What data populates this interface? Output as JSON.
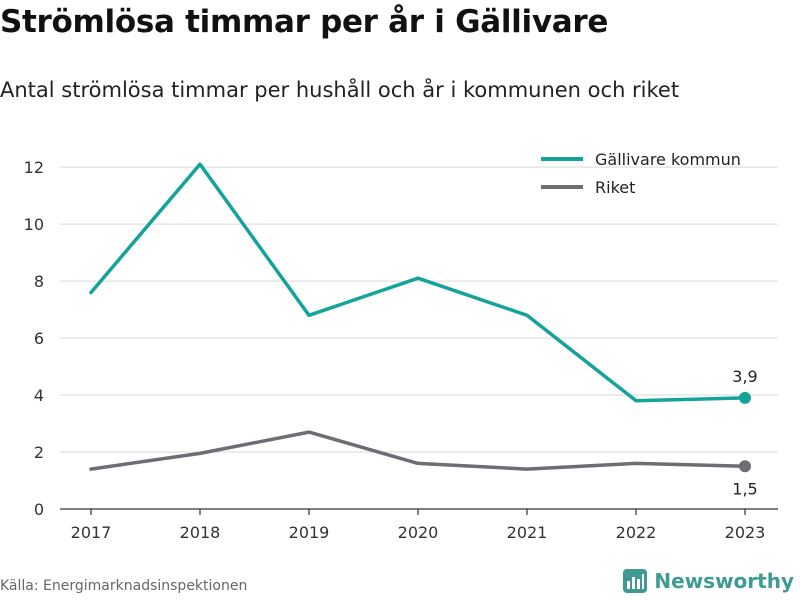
{
  "title": "Strömlösa timmar per år i Gällivare",
  "subtitle": "Antal strömlösa timmar per hushåll och år i kommunen och riket",
  "source": "Källa: Energimarknadsinspektionen",
  "brand": {
    "name": "Newsworthy",
    "icon": "newsworthy-logo-icon"
  },
  "colors": {
    "gallivare": "#14a39a",
    "riket": "#6d6d73",
    "grid": "#d9d9d9",
    "axis": "#333333"
  },
  "chart_data": {
    "type": "line",
    "x": [
      "2017",
      "2018",
      "2019",
      "2020",
      "2021",
      "2022",
      "2023"
    ],
    "ylim": [
      0,
      12.6
    ],
    "yticks": [
      "0",
      "2",
      "4",
      "6",
      "8",
      "10",
      "12"
    ],
    "grid": true,
    "legend_position": "top-right",
    "series": [
      {
        "name": "Gällivare kommun",
        "values": [
          7.6,
          12.1,
          6.8,
          8.1,
          6.8,
          3.8,
          3.9
        ],
        "end_label": "3,9"
      },
      {
        "name": "Riket",
        "values": [
          1.4,
          1.95,
          2.7,
          1.6,
          1.4,
          1.6,
          1.5
        ],
        "end_label": "1,5"
      }
    ]
  }
}
